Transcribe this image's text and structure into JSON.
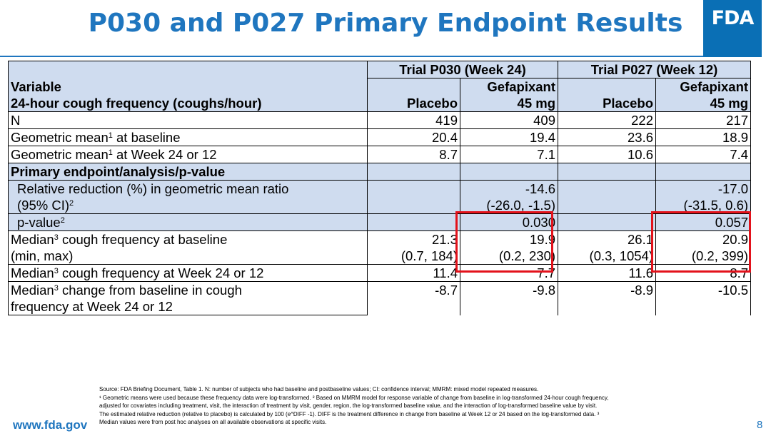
{
  "title": "P030 and P027 Primary Endpoint Results",
  "logo_text": "FDA",
  "table": {
    "trial1": "Trial P030 (Week 24)",
    "trial2": "Trial P027 (Week 12)",
    "var_line1": "Variable",
    "var_line2": "24-hour cough frequency (coughs/hour)",
    "col_placebo": "Placebo",
    "col_gef_line1": "Gefapixant",
    "col_gef_line2": "45 mg",
    "rows": {
      "n": {
        "label": "N",
        "v": [
          "419",
          "409",
          "222",
          "217"
        ]
      },
      "gm_base": {
        "label": "Geometric mean",
        "sup": "1",
        "label_rest": " at baseline",
        "v": [
          "20.4",
          "19.4",
          "23.6",
          "18.9"
        ]
      },
      "gm_week": {
        "label": "Geometric mean",
        "sup": "1",
        "label_rest": " at Week 24 or 12",
        "v": [
          "8.7",
          "7.1",
          "10.6",
          "7.4"
        ]
      },
      "section": {
        "label": "Primary endpoint/analysis/p-value"
      },
      "rel_red": {
        "label": "Relative reduction (%) in geometric mean ratio",
        "v": [
          "-14.6",
          "-17.0"
        ]
      },
      "ci": {
        "label": "(95% CI)",
        "sup": "2",
        "v": [
          "(-26.0, -1.5)",
          "(-31.5, 0.6)"
        ]
      },
      "pval": {
        "label": "p-value",
        "sup": "2",
        "v": [
          "0.030",
          "0.057"
        ]
      },
      "med_base": {
        "label": "Median",
        "sup": "3",
        "label_rest": " cough frequency at baseline",
        "v": [
          "21.3",
          "19.9",
          "26.1",
          "20.9"
        ]
      },
      "minmax": {
        "label": "(min, max)",
        "v": [
          "(0.7, 184)",
          "(0.2, 230)",
          "(0.3, 1054)",
          "(0.2, 399)"
        ]
      },
      "med_week": {
        "label": "Median",
        "sup": "3",
        "label_rest": " cough frequency at Week 24 or 12",
        "v": [
          "11.4",
          "7.7",
          "11.6",
          "8.7"
        ]
      },
      "med_change": {
        "label": "Median",
        "sup": "3",
        "label_rest": " change from baseline in cough",
        "v": [
          "-8.7",
          "-9.8",
          "-8.9",
          "-10.5"
        ]
      },
      "med_change2": {
        "label": "frequency at Week 24 or 12"
      }
    }
  },
  "footnotes": [
    "Source: FDA Briefing Document, Table 1. N: number of subjects who had baseline and postbaseline values; CI: confidence interval; MMRM: mixed model repeated measures.",
    "¹ Geometric means were used because these frequency data were log-transformed. ² Based on MMRM model for response variable of change from baseline in log-transformed 24-hour cough frequency,",
    "adjusted for covariates including treatment, visit, the interaction of treatment by visit, gender, region, the log-transformed baseline value, and the interaction of log-transformed baseline value by visit.",
    "The estimated relative reduction (relative to placebo) is calculated by 100 (e^DIFF -1). DIFF is the treatment difference in change from baseline at Week 12 or 24 based on the log-transformed data. ³",
    "Median values were from post hoc analyses on all available observations at specific visits."
  ],
  "website": "www.fda.gov",
  "page_number": "8",
  "colors": {
    "title_blue": "#1f76bf",
    "header_fill": "#cfdcef",
    "highlight_red": "#e3121b",
    "logo_blue": "#0a6fb5"
  }
}
